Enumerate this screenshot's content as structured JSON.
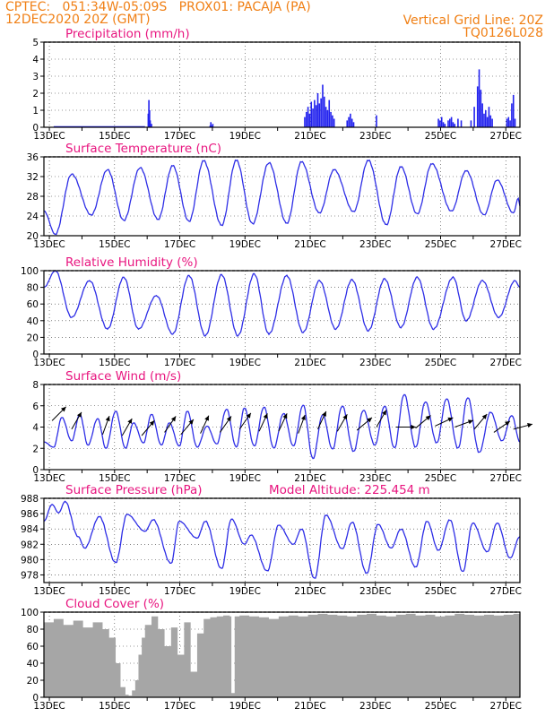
{
  "header": {
    "line1_left": "CPTEC:   051:34W-05:09S   PROX01: PACAJA (PA)",
    "line2_left": "12DEC2020 20Z (GMT)",
    "line1_right": "Vertical Grid Line: 20Z",
    "line2_right": "TQ0126L028"
  },
  "colors": {
    "header": "#f07f14",
    "title": "#e8157f",
    "line": "#2e2ee6",
    "bar": "#2222ee",
    "cloud": "#a6a6a6",
    "axis": "#000000"
  },
  "x_ticks": [
    "13DEC",
    "15DEC",
    "17DEC",
    "19DEC",
    "21DEC",
    "23DEC",
    "25DEC",
    "27DEC"
  ],
  "chart_data": [
    {
      "id": "precip",
      "type": "bar",
      "title": "Precipitation (mm/h)",
      "ylim": [
        0,
        5
      ],
      "yticks": [
        0,
        1,
        2,
        3,
        4,
        5
      ],
      "x_range_days": [
        0.0,
        14.6
      ],
      "x": [
        3.2,
        3.22,
        3.24,
        3.26,
        3.3,
        5.1,
        5.12,
        5.14,
        5.18,
        8.0,
        8.05,
        8.1,
        8.15,
        8.2,
        8.25,
        8.3,
        8.35,
        8.4,
        8.45,
        8.5,
        8.55,
        8.6,
        8.65,
        8.7,
        8.75,
        8.8,
        8.85,
        8.9,
        9.3,
        9.35,
        9.4,
        9.45,
        9.5,
        10.2,
        12.1,
        12.15,
        12.2,
        12.25,
        12.3,
        12.4,
        12.45,
        12.5,
        12.55,
        12.6,
        12.7,
        12.8,
        13.1,
        13.2,
        13.3,
        13.35,
        13.4,
        13.45,
        13.5,
        13.55,
        13.6,
        13.65,
        13.7,
        13.75,
        14.2,
        14.25,
        14.3,
        14.35,
        14.4,
        14.45
      ],
      "values": [
        0.8,
        1.6,
        1.0,
        0.4,
        0.2,
        0.1,
        0.3,
        0.1,
        0.2,
        0.6,
        0.9,
        1.2,
        0.8,
        1.5,
        1.1,
        1.6,
        1.3,
        2.0,
        1.4,
        1.7,
        2.5,
        1.8,
        1.2,
        1.0,
        1.6,
        0.9,
        0.7,
        0.5,
        0.4,
        0.6,
        0.8,
        0.5,
        0.3,
        0.7,
        0.5,
        0.4,
        0.6,
        0.3,
        0.2,
        0.4,
        0.5,
        0.6,
        0.3,
        0.2,
        0.5,
        0.4,
        0.4,
        1.2,
        2.4,
        3.4,
        2.2,
        1.4,
        0.8,
        1.0,
        0.6,
        1.2,
        0.7,
        0.5,
        0.5,
        0.6,
        0.4,
        1.4,
        1.9,
        0.5
      ]
    },
    {
      "id": "temp",
      "type": "line",
      "title": "Surface Temperature (nC)",
      "ylim": [
        20,
        36
      ],
      "yticks": [
        20,
        24,
        28,
        32,
        36
      ],
      "minmax": [
        [
          0.0,
          25.0
        ],
        [
          0.35,
          20.3
        ],
        [
          0.85,
          32.5
        ],
        [
          1.45,
          24.2
        ],
        [
          1.95,
          33.4
        ],
        [
          2.45,
          23.1
        ],
        [
          2.95,
          33.8
        ],
        [
          3.5,
          23.3
        ],
        [
          3.95,
          34.2
        ],
        [
          4.45,
          22.9
        ],
        [
          4.9,
          35.2
        ],
        [
          5.45,
          22.1
        ],
        [
          5.9,
          35.3
        ],
        [
          6.4,
          22.4
        ],
        [
          6.9,
          34.8
        ],
        [
          7.45,
          22.5
        ],
        [
          7.9,
          35.0
        ],
        [
          8.45,
          24.6
        ],
        [
          8.9,
          33.4
        ],
        [
          9.5,
          24.9
        ],
        [
          9.95,
          35.3
        ],
        [
          10.5,
          22.2
        ],
        [
          10.95,
          34.0
        ],
        [
          11.45,
          24.4
        ],
        [
          11.9,
          34.6
        ],
        [
          12.5,
          25.0
        ],
        [
          12.95,
          33.2
        ],
        [
          13.5,
          24.2
        ],
        [
          13.9,
          31.3
        ],
        [
          14.4,
          24.6
        ],
        [
          14.55,
          27.6
        ],
        [
          14.6,
          26.0
        ]
      ]
    },
    {
      "id": "rh",
      "type": "line",
      "title": "Relative Humidity (%)",
      "ylim": [
        0,
        100
      ],
      "yticks": [
        0,
        20,
        40,
        60,
        80,
        100
      ],
      "minmax": [
        [
          0.0,
          80
        ],
        [
          0.35,
          100
        ],
        [
          0.85,
          44
        ],
        [
          1.4,
          88
        ],
        [
          1.95,
          30
        ],
        [
          2.45,
          92
        ],
        [
          2.9,
          30
        ],
        [
          3.45,
          70
        ],
        [
          3.95,
          24
        ],
        [
          4.45,
          94
        ],
        [
          4.95,
          22
        ],
        [
          5.45,
          95
        ],
        [
          5.95,
          22
        ],
        [
          6.45,
          96
        ],
        [
          6.9,
          24
        ],
        [
          7.45,
          94
        ],
        [
          7.95,
          26
        ],
        [
          8.45,
          88
        ],
        [
          8.95,
          30
        ],
        [
          9.45,
          89
        ],
        [
          9.95,
          28
        ],
        [
          10.45,
          90
        ],
        [
          10.95,
          32
        ],
        [
          11.45,
          92
        ],
        [
          11.95,
          30
        ],
        [
          12.55,
          92
        ],
        [
          12.95,
          40
        ],
        [
          13.45,
          88
        ],
        [
          13.95,
          44
        ],
        [
          14.45,
          88
        ],
        [
          14.6,
          80
        ]
      ]
    },
    {
      "id": "wind",
      "type": "line",
      "title": "Surface Wind (m/s)",
      "ylim": [
        0,
        8
      ],
      "yticks": [
        0,
        2,
        4,
        6,
        8
      ],
      "minmax": [
        [
          0.0,
          2.6
        ],
        [
          0.3,
          2.1
        ],
        [
          0.55,
          4.9
        ],
        [
          0.85,
          2.7
        ],
        [
          1.1,
          5.2
        ],
        [
          1.35,
          2.3
        ],
        [
          1.65,
          4.8
        ],
        [
          1.9,
          2.0
        ],
        [
          2.2,
          5.5
        ],
        [
          2.5,
          2.0
        ],
        [
          2.75,
          4.4
        ],
        [
          3.05,
          2.5
        ],
        [
          3.3,
          5.2
        ],
        [
          3.6,
          2.3
        ],
        [
          3.85,
          4.4
        ],
        [
          4.15,
          2.2
        ],
        [
          4.4,
          5.5
        ],
        [
          4.7,
          2.1
        ],
        [
          5.0,
          4.1
        ],
        [
          5.3,
          2.4
        ],
        [
          5.6,
          5.7
        ],
        [
          5.9,
          2.1
        ],
        [
          6.15,
          5.8
        ],
        [
          6.45,
          2.2
        ],
        [
          6.75,
          5.9
        ],
        [
          7.05,
          2.0
        ],
        [
          7.35,
          5.3
        ],
        [
          7.65,
          2.2
        ],
        [
          7.95,
          6.1
        ],
        [
          8.25,
          1.0
        ],
        [
          8.55,
          5.2
        ],
        [
          8.85,
          1.9
        ],
        [
          9.15,
          6.0
        ],
        [
          9.5,
          1.7
        ],
        [
          9.8,
          5.6
        ],
        [
          10.15,
          2.3
        ],
        [
          10.45,
          6.0
        ],
        [
          10.75,
          2.0
        ],
        [
          11.05,
          7.1
        ],
        [
          11.4,
          2.1
        ],
        [
          11.7,
          6.4
        ],
        [
          12.05,
          2.5
        ],
        [
          12.35,
          6.7
        ],
        [
          12.7,
          2.0
        ],
        [
          13.0,
          6.8
        ],
        [
          13.35,
          1.6
        ],
        [
          13.7,
          5.4
        ],
        [
          14.05,
          2.7
        ],
        [
          14.35,
          5.1
        ],
        [
          14.6,
          2.6
        ]
      ],
      "arrows": [
        [
          0.25,
          4.6,
          225
        ],
        [
          0.85,
          3.8,
          210
        ],
        [
          1.8,
          3.3,
          200
        ],
        [
          2.4,
          3.2,
          210
        ],
        [
          3.0,
          3.2,
          220
        ],
        [
          3.7,
          3.5,
          215
        ],
        [
          4.2,
          3.3,
          220
        ],
        [
          4.8,
          3.4,
          205
        ],
        [
          5.4,
          3.5,
          215
        ],
        [
          6.0,
          3.8,
          215
        ],
        [
          6.6,
          3.6,
          205
        ],
        [
          7.2,
          3.6,
          205
        ],
        [
          7.8,
          3.4,
          200
        ],
        [
          8.4,
          3.8,
          205
        ],
        [
          9.0,
          3.6,
          210
        ],
        [
          9.6,
          3.7,
          230
        ],
        [
          10.2,
          4.0,
          210
        ],
        [
          10.8,
          4.0,
          270
        ],
        [
          11.4,
          3.9,
          230
        ],
        [
          12.0,
          4.1,
          245
        ],
        [
          12.6,
          4.0,
          250
        ],
        [
          13.2,
          3.8,
          220
        ],
        [
          13.8,
          3.5,
          235
        ],
        [
          14.4,
          3.8,
          255
        ]
      ]
    },
    {
      "id": "pressure",
      "type": "line",
      "title": "Surface Pressure (hPa)",
      "annotation": "Model Altitude: 225.454  m",
      "ylim": [
        977,
        988
      ],
      "yticks": [
        978,
        980,
        982,
        984,
        986,
        988
      ],
      "minmax": [
        [
          0.0,
          985.0
        ],
        [
          0.25,
          987.2
        ],
        [
          0.45,
          986.1
        ],
        [
          0.65,
          987.6
        ],
        [
          1.05,
          983.0
        ],
        [
          1.25,
          981.5
        ],
        [
          1.7,
          985.6
        ],
        [
          2.2,
          979.6
        ],
        [
          2.55,
          985.9
        ],
        [
          3.1,
          983.7
        ],
        [
          3.35,
          985.2
        ],
        [
          3.9,
          979.5
        ],
        [
          4.15,
          985.0
        ],
        [
          4.7,
          982.8
        ],
        [
          4.95,
          985.0
        ],
        [
          5.45,
          978.8
        ],
        [
          5.75,
          985.3
        ],
        [
          6.15,
          982.0
        ],
        [
          6.35,
          983.2
        ],
        [
          6.85,
          978.5
        ],
        [
          7.2,
          984.5
        ],
        [
          7.65,
          982.0
        ],
        [
          7.9,
          984.0
        ],
        [
          8.3,
          977.5
        ],
        [
          8.65,
          985.8
        ],
        [
          9.15,
          981.4
        ],
        [
          9.45,
          984.9
        ],
        [
          9.9,
          978.2
        ],
        [
          10.25,
          984.6
        ],
        [
          10.65,
          981.5
        ],
        [
          10.95,
          984.0
        ],
        [
          11.4,
          979.0
        ],
        [
          11.75,
          985.0
        ],
        [
          12.1,
          981.2
        ],
        [
          12.45,
          985.2
        ],
        [
          12.85,
          978.4
        ],
        [
          13.15,
          984.8
        ],
        [
          13.6,
          981.0
        ],
        [
          13.9,
          984.8
        ],
        [
          14.3,
          980.2
        ],
        [
          14.6,
          983.0
        ]
      ]
    },
    {
      "id": "cloud",
      "type": "area",
      "title": "Cloud Cover (%)",
      "ylim": [
        0,
        100
      ],
      "yticks": [
        0,
        20,
        40,
        60,
        80,
        100
      ],
      "x": [
        0.0,
        0.3,
        0.6,
        0.9,
        1.2,
        1.5,
        1.8,
        2.0,
        2.2,
        2.35,
        2.5,
        2.6,
        2.7,
        2.8,
        2.9,
        3.0,
        3.1,
        3.3,
        3.5,
        3.7,
        3.9,
        4.1,
        4.3,
        4.5,
        4.7,
        4.9,
        5.1,
        5.3,
        5.5,
        5.7,
        5.75,
        5.85,
        6.0,
        6.3,
        6.6,
        6.9,
        7.2,
        7.5,
        7.8,
        8.1,
        8.4,
        8.7,
        9.0,
        9.3,
        9.6,
        9.9,
        10.2,
        10.5,
        10.8,
        11.1,
        11.4,
        11.7,
        12.0,
        12.3,
        12.6,
        12.9,
        13.2,
        13.5,
        13.8,
        14.1,
        14.4,
        14.6
      ],
      "values": [
        88,
        92,
        85,
        90,
        82,
        88,
        80,
        70,
        40,
        12,
        3,
        2,
        8,
        20,
        50,
        70,
        85,
        95,
        80,
        60,
        82,
        50,
        88,
        30,
        75,
        92,
        94,
        95,
        96,
        95,
        5,
        95,
        96,
        95,
        94,
        92,
        95,
        96,
        95,
        97,
        98,
        97,
        96,
        95,
        97,
        98,
        96,
        95,
        97,
        98,
        96,
        97,
        95,
        96,
        98,
        97,
        96,
        97,
        96,
        97,
        98,
        97
      ]
    }
  ]
}
